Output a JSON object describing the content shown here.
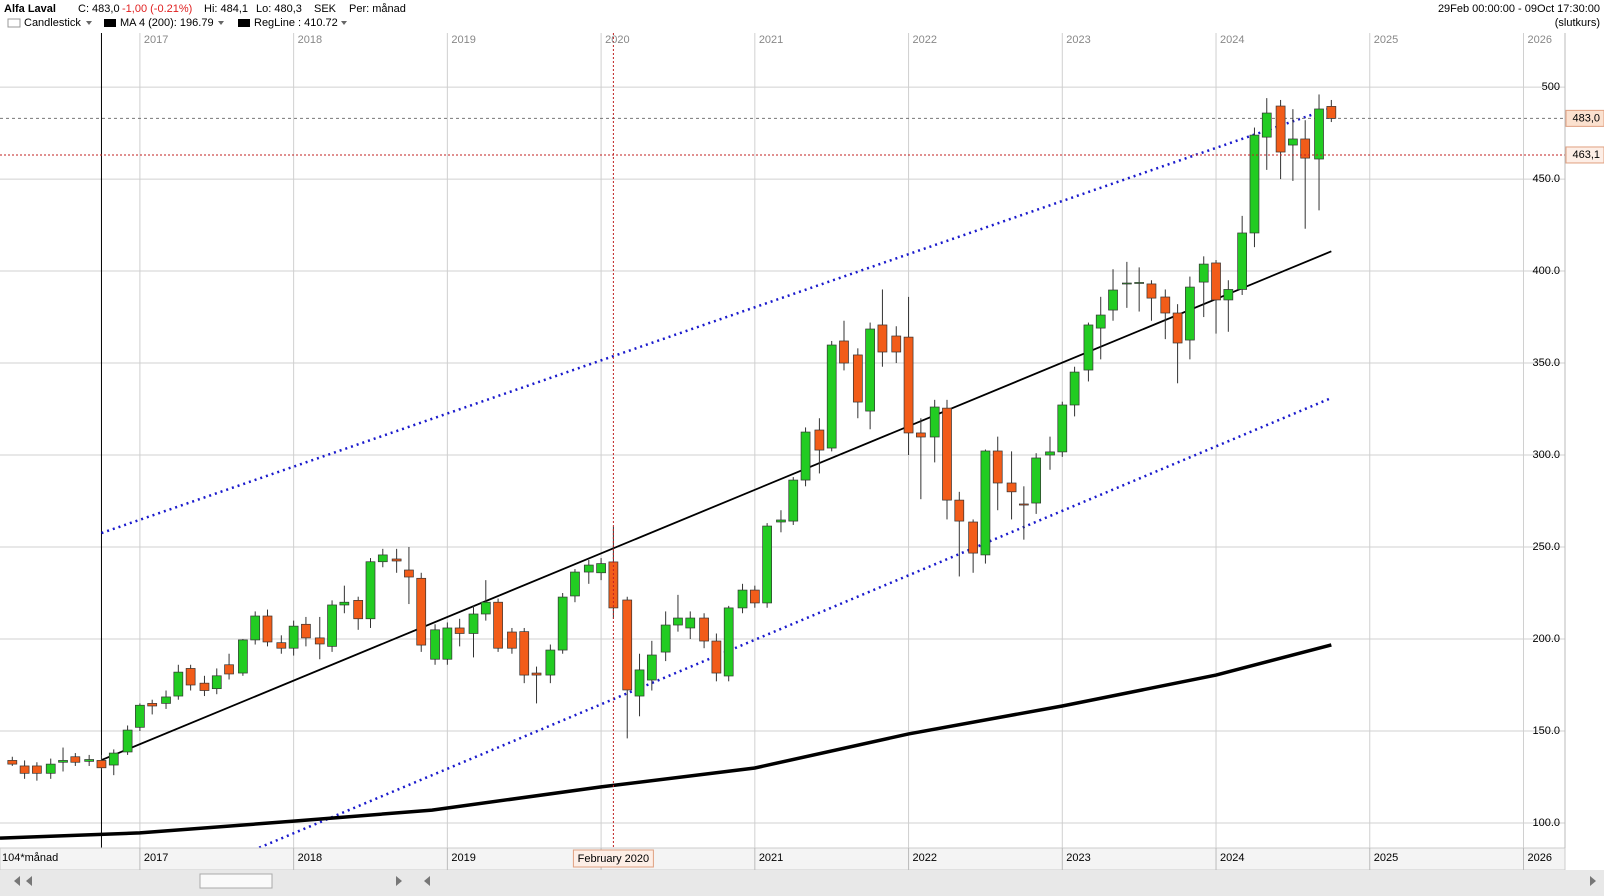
{
  "header": {
    "title": "Alfa Laval",
    "close": "C: 483,0",
    "change": "-1,00 (-0.21%)",
    "high": "Hi: 484,1",
    "low": "Lo: 480,3",
    "currency": "SEK",
    "period": "Per: månad",
    "range": "29Feb 00:00:00 - 09Oct 17:30:00",
    "mode": "(slutkurs)"
  },
  "chart_data": {
    "type": "candlestick",
    "candle_name": "Candlestick",
    "up_color": "#22cc22",
    "down_color": "#f25c19",
    "x_axis_label": "104*månad",
    "xlim": [
      2016.09,
      2026.27
    ],
    "xticks": [
      2017,
      2018,
      2019,
      2020,
      2021,
      2022,
      2023,
      2024,
      2025,
      2026
    ],
    "ylim": [
      86.4,
      529.4
    ],
    "yticks": [
      {
        "value": 100,
        "label": "100.0"
      },
      {
        "value": 150,
        "label": "150.0"
      },
      {
        "value": 200,
        "label": "200.0"
      },
      {
        "value": 250,
        "label": "250.0"
      },
      {
        "value": 300,
        "label": "300.0"
      },
      {
        "value": 350,
        "label": "350.0"
      },
      {
        "value": 400,
        "label": "400.0"
      },
      {
        "value": 450,
        "label": "450.0"
      },
      500
    ],
    "grid": true,
    "x": [
      2016.17,
      2016.25,
      2016.33,
      2016.42,
      2016.5,
      2016.58,
      2016.67,
      2016.75,
      2016.83,
      2016.92,
      2017,
      2017.08,
      2017.17,
      2017.25,
      2017.33,
      2017.42,
      2017.5,
      2017.58,
      2017.67,
      2017.75,
      2017.83,
      2017.92,
      2018,
      2018.08,
      2018.17,
      2018.25,
      2018.33,
      2018.42,
      2018.5,
      2018.58,
      2018.67,
      2018.75,
      2018.83,
      2018.92,
      2019,
      2019.08,
      2019.17,
      2019.25,
      2019.33,
      2019.42,
      2019.5,
      2019.58,
      2019.67,
      2019.75,
      2019.83,
      2019.92,
      2020,
      2020.08,
      2020.17,
      2020.25,
      2020.33,
      2020.42,
      2020.5,
      2020.58,
      2020.67,
      2020.75,
      2020.83,
      2020.92,
      2021,
      2021.08,
      2021.17,
      2021.25,
      2021.33,
      2021.42,
      2021.5,
      2021.58,
      2021.67,
      2021.75,
      2021.83,
      2021.92,
      2022,
      2022.08,
      2022.17,
      2022.25,
      2022.33,
      2022.42,
      2022.5,
      2022.58,
      2022.67,
      2022.75,
      2022.83,
      2022.92,
      2023,
      2023.08,
      2023.17,
      2023.25,
      2023.33,
      2023.42,
      2023.5,
      2023.58,
      2023.67,
      2023.75,
      2023.83,
      2023.92,
      2024,
      2024.08,
      2024.17,
      2024.25,
      2024.33,
      2024.42,
      2024.5,
      2024.58,
      2024.67,
      2024.75
    ],
    "open": [
      134,
      131,
      131,
      127,
      133,
      136,
      133.5,
      134,
      131.5,
      138.6,
      152,
      165,
      165,
      169,
      184,
      176,
      173,
      186,
      181.5,
      199.5,
      212.5,
      198,
      195,
      208,
      200.6,
      196,
      218.5,
      221,
      211,
      242,
      243.5,
      237.5,
      233,
      189,
      189,
      206,
      203,
      213.6,
      220,
      203.8,
      204,
      181.5,
      180.4,
      194,
      223.4,
      236.4,
      236,
      241.9,
      221.2,
      169,
      177.7,
      192.9,
      207.6,
      206,
      211.4,
      198.9,
      179.9,
      216.9,
      226.6,
      219.6,
      263.6,
      264.1,
      286.4,
      313.6,
      303.8,
      362,
      354.4,
      323.9,
      370.7,
      364.7,
      364.1,
      312,
      309.8,
      325.5,
      275.5,
      263.6,
      245.7,
      302.2,
      284.8,
      273.4,
      273.9,
      300,
      301.7,
      327.2,
      346.2,
      369,
      378.8,
      393,
      393.5,
      393,
      385.9,
      377.2,
      362.5,
      394,
      404.4,
      384.3,
      390,
      420.7,
      472.8,
      489.7,
      468.5,
      471.8,
      460.9,
      489.5
    ],
    "high": [
      136,
      134,
      133,
      135,
      141,
      138,
      137,
      137,
      140,
      153,
      165,
      167,
      172,
      186,
      186,
      180,
      184,
      192,
      200,
      215,
      216,
      202,
      210,
      212,
      212,
      221,
      229,
      223,
      244,
      249,
      249,
      250,
      236,
      208,
      209,
      211,
      218,
      232,
      222,
      206,
      206,
      185,
      197,
      225,
      238,
      243,
      244,
      261,
      223,
      192,
      199,
      215,
      224,
      215,
      214,
      203,
      218,
      230,
      229,
      263,
      270,
      288,
      315,
      320,
      362,
      373,
      358,
      372,
      390,
      370,
      386,
      320,
      330,
      330,
      280,
      265,
      303,
      310,
      302,
      283,
      301,
      310,
      329,
      348,
      372,
      386,
      401,
      405,
      402,
      395,
      390,
      382,
      397,
      408,
      406,
      395,
      430,
      478,
      494,
      493,
      488,
      482,
      496,
      493
    ],
    "low": [
      131,
      124,
      123,
      124,
      128,
      131,
      131,
      129,
      126,
      137,
      150,
      159,
      162,
      167,
      172,
      169,
      170,
      178,
      180,
      197,
      196,
      192,
      191,
      196,
      189,
      193,
      214,
      205,
      206,
      239,
      236,
      219,
      193,
      186,
      186,
      196,
      190,
      210,
      193,
      192,
      176,
      165,
      176,
      192,
      220,
      230,
      232,
      211,
      146,
      158,
      172,
      188,
      204,
      200,
      195,
      177,
      177,
      214,
      217,
      217,
      258,
      262,
      283,
      290,
      302,
      346,
      320,
      314,
      348,
      350,
      300,
      276,
      296,
      265,
      234,
      236,
      241,
      270,
      265,
      254,
      268,
      292,
      299,
      321,
      340,
      352,
      373,
      380,
      378,
      373,
      363,
      339,
      352,
      375,
      366,
      367,
      387,
      413,
      455,
      450,
      449,
      423,
      433,
      481
    ],
    "close": [
      132,
      127,
      127,
      132,
      134,
      133,
      134.5,
      130,
      138,
      150.5,
      164,
      163.6,
      168.5,
      182,
      175,
      172,
      180,
      181,
      199.5,
      212.5,
      198.4,
      195,
      207,
      200.6,
      197.3,
      218.5,
      220,
      211,
      242,
      245.7,
      242.4,
      233.7,
      196.7,
      205,
      206,
      203,
      213.6,
      220,
      195,
      195,
      180.4,
      180.4,
      194,
      222.8,
      236.4,
      240.2,
      241,
      216.9,
      172.3,
      183.2,
      191.3,
      207.6,
      211.4,
      211.4,
      198.9,
      181.5,
      216.9,
      226.6,
      219.6,
      261.4,
      264.7,
      286.4,
      312.5,
      302.7,
      359.8,
      350,
      328.8,
      368.5,
      356,
      356,
      312,
      309.8,
      326.1,
      275.5,
      264.1,
      246.7,
      302.2,
      284.8,
      280,
      272.8,
      298.4,
      301.7,
      327.2,
      345.1,
      370.7,
      376.1,
      389.7,
      393.5,
      393.8,
      385.3,
      377.2,
      360.9,
      391.3,
      403.8,
      384.3,
      390,
      420.7,
      473.9,
      485.9,
      464.7,
      471.8,
      461.4,
      488.1,
      483.0
    ],
    "series": [
      {
        "name": "MA 4 (200): 196.79",
        "color": "#000000",
        "x": [
          2016.09,
          2017,
          2018,
          2018.9,
          2020,
          2021,
          2022,
          2023,
          2024,
          2024.75
        ],
        "values": [
          91.8,
          94.6,
          101,
          107,
          119.6,
          129.9,
          148.4,
          163.6,
          180.4,
          196.79
        ]
      },
      {
        "name": "RegLine : 410.72",
        "color": "#000000",
        "x": [
          2016.75,
          2024.75
        ],
        "values": [
          134.2,
          410.72
        ]
      }
    ],
    "channel_upper": {
      "color": "#1a1acc",
      "x": [
        2016.75,
        2024.75
      ],
      "values": [
        257.6,
        488.6
      ]
    },
    "channel_lower": {
      "color": "#1a1acc",
      "x": [
        2017.74,
        2024.75
      ],
      "values": [
        85.3,
        331
      ]
    },
    "last_price": {
      "value": 483.0,
      "label": "483,0"
    },
    "crosshair": {
      "x": 2020.08,
      "x_label": "February 2020",
      "y": 463.1,
      "y_label": "463,1"
    }
  }
}
